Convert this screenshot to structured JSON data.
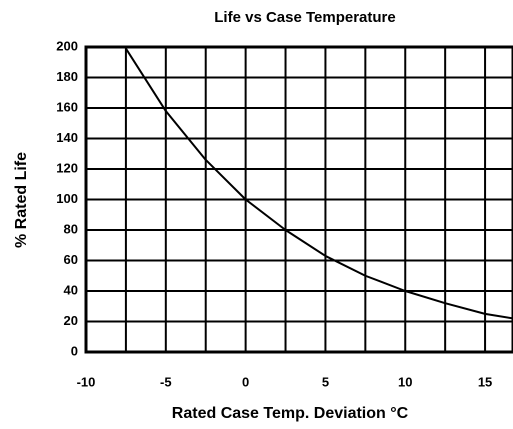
{
  "chart_data": {
    "type": "line",
    "title": "Life vs Case Temperature",
    "x_label": "Rated Case Temp. Deviation °C",
    "y_label": "% Rated Life",
    "x": [
      -7.5,
      -5,
      -2.5,
      0,
      2.5,
      5,
      7.5,
      10,
      12.5,
      15,
      16.75
    ],
    "series": [
      {
        "color": "#000000",
        "values": [
          199,
          158,
          126,
          100,
          80,
          63,
          50,
          40,
          32,
          25,
          22
        ]
      }
    ],
    "xlim": [
      -10,
      16.75
    ],
    "xticks": [
      -10,
      -5,
      0,
      5,
      10,
      15
    ],
    "x_minor_grid": [
      -7.5,
      -2.5,
      2.5,
      7.5,
      12.5
    ],
    "ylim": [
      0,
      200
    ],
    "yticks": [
      0,
      20,
      40,
      60,
      80,
      100,
      120,
      140,
      160,
      180,
      200
    ],
    "grid": true
  }
}
